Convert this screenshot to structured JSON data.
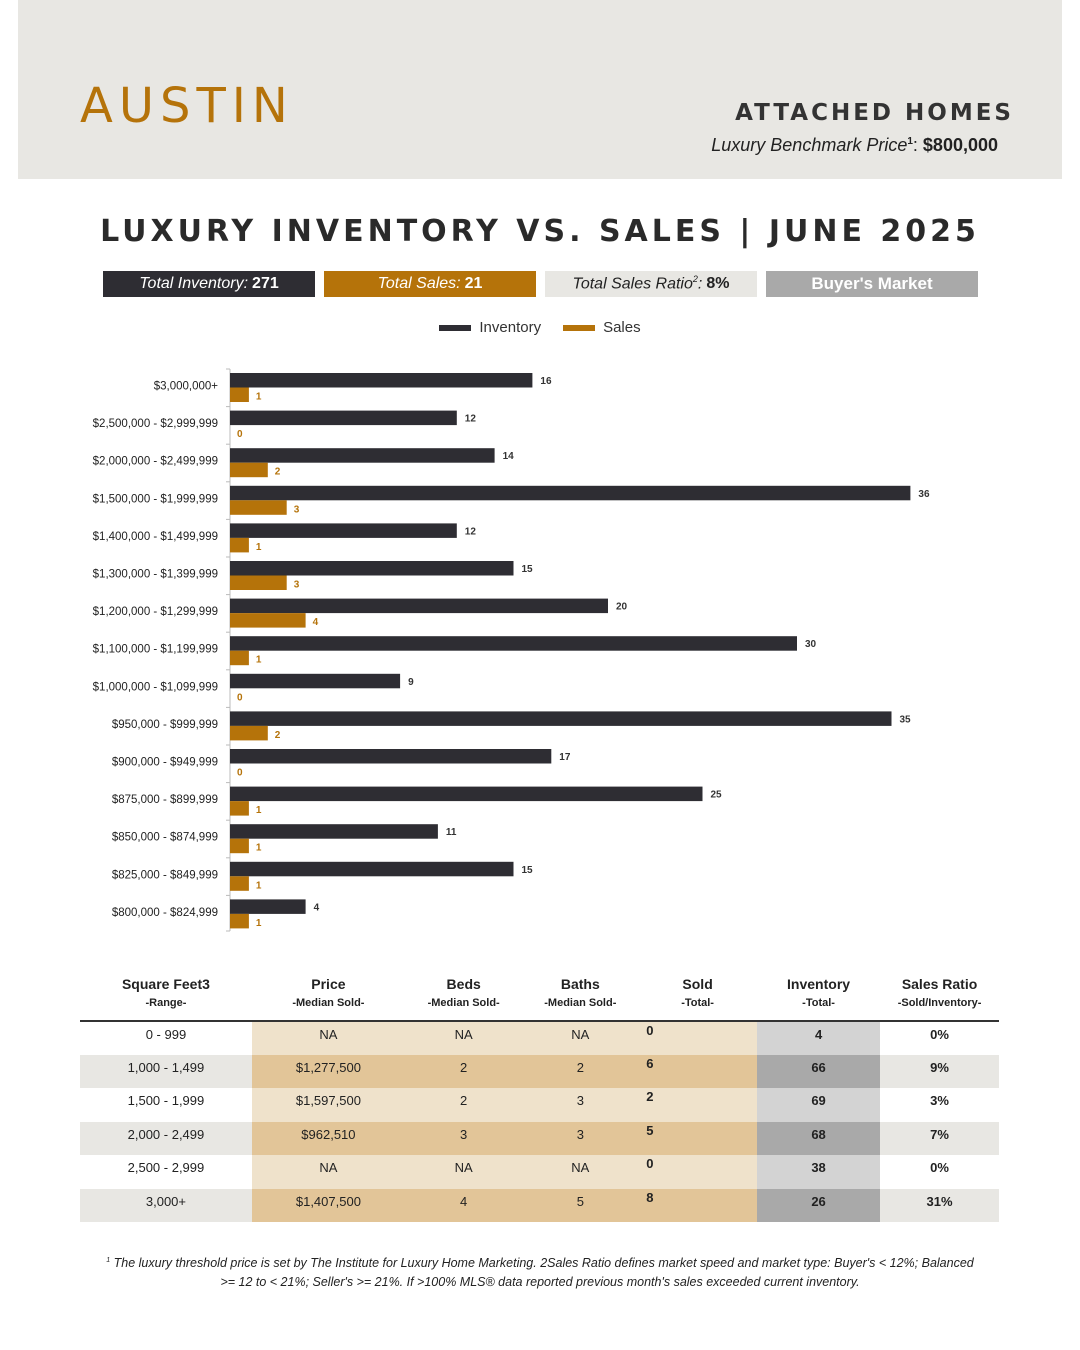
{
  "header": {
    "city": "AUSTIN",
    "property_type": "ATTACHED HOMES",
    "benchmark_label": "Luxury Benchmark Price",
    "benchmark_sup": "1",
    "benchmark_value": "$800,000"
  },
  "title": "LUXURY INVENTORY VS. SALES | JUNE 2025",
  "summary": {
    "inventory_label": "Total Inventory:",
    "inventory_value": "271",
    "sales_label": "Total Sales:",
    "sales_value": "21",
    "ratio_label": "Total Sales Ratio",
    "ratio_sup": "2",
    "ratio_value": "8%",
    "market": "Buyer's Market"
  },
  "colors": {
    "inventory": "#2e2d33",
    "sales": "#b5730a",
    "header_band": "#e8e7e3",
    "accent": "#b5730a"
  },
  "chart_data": {
    "type": "bar",
    "orientation": "horizontal",
    "legend_position": "top",
    "grid": false,
    "categories": [
      "$3,000,000+",
      "$2,500,000 - $2,999,999",
      "$2,000,000 - $2,499,999",
      "$1,500,000 - $1,999,999",
      "$1,400,000 - $1,499,999",
      "$1,300,000 - $1,399,999",
      "$1,200,000 - $1,299,999",
      "$1,100,000 - $1,199,999",
      "$1,000,000 - $1,099,999",
      "$950,000 - $999,999",
      "$900,000 - $949,999",
      "$875,000 - $899,999",
      "$850,000 - $874,999",
      "$825,000 - $849,999",
      "$800,000 - $824,999"
    ],
    "series": [
      {
        "name": "Inventory",
        "values": [
          16,
          12,
          14,
          36,
          12,
          15,
          20,
          30,
          9,
          35,
          17,
          25,
          11,
          15,
          4
        ]
      },
      {
        "name": "Sales",
        "values": [
          1,
          0,
          2,
          3,
          1,
          3,
          4,
          1,
          0,
          2,
          0,
          1,
          1,
          1,
          1
        ]
      }
    ]
  },
  "table": {
    "headers": [
      {
        "title": "Square Feet3",
        "sub": "-Range-"
      },
      {
        "title": "Price",
        "sub": "-Median Sold-"
      },
      {
        "title": "Beds",
        "sub": "-Median Sold-"
      },
      {
        "title": "Baths",
        "sub": "-Median Sold-"
      },
      {
        "title": "Sold",
        "sub": "-Total-"
      },
      {
        "title": "Inventory",
        "sub": "-Total-"
      },
      {
        "title": "Sales Ratio",
        "sub": "-Sold/Inventory-"
      }
    ],
    "rows": [
      [
        "0 - 999",
        "NA",
        "NA",
        "NA",
        "0",
        "4",
        "0%"
      ],
      [
        "1,000 - 1,499",
        "$1,277,500",
        "2",
        "2",
        "6",
        "66",
        "9%"
      ],
      [
        "1,500 - 1,999",
        "$1,597,500",
        "2",
        "3",
        "2",
        "69",
        "3%"
      ],
      [
        "2,000 - 2,499",
        "$962,510",
        "3",
        "3",
        "5",
        "68",
        "7%"
      ],
      [
        "2,500 - 2,999",
        "NA",
        "NA",
        "NA",
        "0",
        "38",
        "0%"
      ],
      [
        "3,000+",
        "$1,407,500",
        "4",
        "5",
        "8",
        "26",
        "31%"
      ]
    ]
  },
  "footnote": {
    "sup": "1",
    "text": "The luxury threshold price is set by The Institute for Luxury Home Marketing. 2Sales Ratio defines market speed and market type: Buyer's < 12%; Balanced >= 12 to < 21%; Seller's >= 21%. If >100% MLS® data reported previous month's sales exceeded current inventory."
  }
}
